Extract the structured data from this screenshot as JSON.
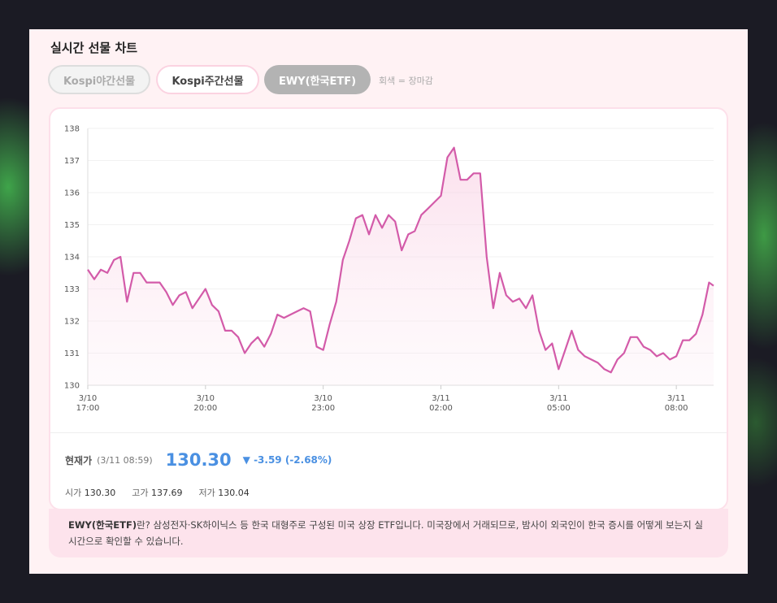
{
  "title": "실시간 선물 차트",
  "tabs": [
    "Kospi야간선물",
    "Kospi주간선물",
    "EWY(한국ETF)"
  ],
  "legend_note": "회색 = 장마감",
  "chart_data": {
    "type": "line",
    "color": "#d35ba9",
    "x": [
      "3/10 17:00",
      "3/10 17:10",
      "3/10 17:20",
      "3/10 17:30",
      "3/10 17:40",
      "3/10 17:50",
      "3/10 18:00",
      "3/10 18:10",
      "3/10 18:20",
      "3/10 18:30",
      "3/10 18:40",
      "3/10 18:50",
      "3/10 19:00",
      "3/10 19:10",
      "3/10 19:20",
      "3/10 19:30",
      "3/10 19:40",
      "3/10 19:50",
      "3/10 20:00",
      "3/10 20:10",
      "3/10 20:20",
      "3/10 20:30",
      "3/10 20:40",
      "3/10 20:50",
      "3/10 21:00",
      "3/10 21:10",
      "3/10 21:20",
      "3/10 21:30",
      "3/10 21:40",
      "3/10 21:50",
      "3/10 22:00",
      "3/10 22:10",
      "3/10 22:20",
      "3/10 22:30",
      "3/10 22:40",
      "3/10 22:50",
      "3/10 23:00",
      "3/10 23:10",
      "3/10 23:20",
      "3/10 23:30",
      "3/10 23:40",
      "3/10 23:50",
      "3/11 00:00",
      "3/11 00:10",
      "3/11 00:20",
      "3/11 00:30",
      "3/11 00:40",
      "3/11 00:50",
      "3/11 01:00",
      "3/11 01:10",
      "3/11 01:20",
      "3/11 01:30",
      "3/11 01:40",
      "3/11 01:50",
      "3/11 02:00",
      "3/11 02:10",
      "3/11 02:20",
      "3/11 02:30",
      "3/11 02:40",
      "3/11 02:50",
      "3/11 03:00",
      "3/11 03:10",
      "3/11 03:20",
      "3/11 03:30",
      "3/11 03:40",
      "3/11 03:50",
      "3/11 04:00",
      "3/11 04:10",
      "3/11 04:20",
      "3/11 04:30",
      "3/11 04:40",
      "3/11 04:50",
      "3/11 05:00",
      "3/11 05:10",
      "3/11 05:20",
      "3/11 05:30",
      "3/11 05:40",
      "3/11 05:50",
      "3/11 06:00",
      "3/11 06:10",
      "3/11 06:20",
      "3/11 06:30",
      "3/11 06:40",
      "3/11 06:50",
      "3/11 07:00",
      "3/11 07:10",
      "3/11 07:20",
      "3/11 07:30",
      "3/11 07:40",
      "3/11 07:50",
      "3/11 08:00",
      "3/11 08:10",
      "3/11 08:20",
      "3/11 08:30",
      "3/11 08:40",
      "3/11 08:50",
      "3/11 08:57"
    ],
    "values": [
      133.6,
      133.3,
      133.6,
      133.5,
      133.9,
      134.0,
      132.6,
      133.5,
      133.5,
      133.2,
      133.2,
      133.2,
      132.9,
      132.5,
      132.8,
      132.9,
      132.4,
      132.7,
      133.0,
      132.5,
      132.3,
      131.7,
      131.7,
      131.5,
      131.0,
      131.3,
      131.5,
      131.2,
      131.6,
      132.2,
      132.1,
      132.2,
      132.3,
      132.4,
      132.3,
      131.2,
      131.1,
      131.9,
      132.6,
      133.9,
      134.5,
      135.2,
      135.3,
      134.7,
      135.3,
      134.9,
      135.3,
      135.1,
      134.2,
      134.7,
      134.8,
      135.3,
      135.5,
      135.7,
      135.9,
      137.1,
      137.4,
      136.4,
      136.4,
      136.6,
      136.6,
      134.0,
      132.4,
      133.5,
      132.8,
      132.6,
      132.7,
      132.4,
      132.8,
      131.7,
      131.1,
      131.3,
      130.5,
      131.1,
      131.7,
      131.1,
      130.9,
      130.8,
      130.7,
      130.5,
      130.4,
      130.8,
      131.0,
      131.5,
      131.5,
      131.2,
      131.1,
      130.9,
      131.0,
      130.8,
      130.9,
      131.4,
      131.4,
      131.6,
      132.2,
      133.2,
      133.1
    ],
    "xlim": [
      "3/10 17:00",
      "3/11 08:57"
    ],
    "xticks": [
      {
        "value": "3/10 17:00",
        "label": [
          "3/10",
          "17:00"
        ]
      },
      {
        "value": "3/10 20:00",
        "label": [
          "3/10",
          "20:00"
        ]
      },
      {
        "value": "3/10 23:00",
        "label": [
          "3/10",
          "23:00"
        ]
      },
      {
        "value": "3/11 02:00",
        "label": [
          "3/11",
          "02:00"
        ]
      },
      {
        "value": "3/11 05:00",
        "label": [
          "3/11",
          "05:00"
        ]
      },
      {
        "value": "3/11 08:00",
        "label": [
          "3/11",
          "08:00"
        ]
      }
    ],
    "ylim": [
      130,
      138
    ],
    "yticks": [
      130,
      131,
      132,
      133,
      134,
      135,
      136,
      137,
      138
    ],
    "grid": true
  },
  "quote": {
    "label": "현재가",
    "time": "(3/11 08:59)",
    "price": "130.30",
    "change": "▼ -3.59 (-2.68%)"
  },
  "stats": [
    {
      "label": "시가",
      "value": "130.30"
    },
    {
      "label": "고가",
      "value": "137.69"
    },
    {
      "label": "저가",
      "value": "130.04"
    }
  ],
  "description": {
    "term": "EWY(한국ETF)",
    "text": "란? 삼성전자·SK하이닉스 등 한국 대형주로 구성된 미국 상장 ETF입니다. 미국장에서 거래되므로, 밤사이 외국인이 한국 증시를 어떻게 보는지 실시간으로 확인할 수 있습니다."
  }
}
